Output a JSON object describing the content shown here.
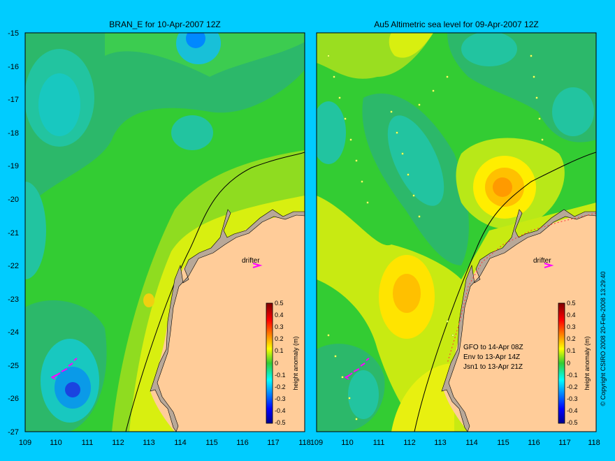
{
  "figure": {
    "copyright": "© Copyright CSIRO 2008   20-Feb-2008 13:29:40",
    "colors": {
      "background": "#00ccff",
      "land": "#ffcc99",
      "coast": "#b8a898",
      "drifter": "#ff00ff",
      "tracks": "#ffff66"
    },
    "lon_ticks": [
      "109",
      "110",
      "111",
      "112",
      "113",
      "114",
      "115",
      "116",
      "117",
      "118"
    ],
    "lat_ticks": [
      "-15",
      "-16",
      "-17",
      "-18",
      "-19",
      "-20",
      "-21",
      "-22",
      "-23",
      "-24",
      "-25",
      "-26",
      "-27"
    ],
    "colorbar": {
      "label": "height anomaly (m)",
      "ticks": [
        "0.5",
        "0.4",
        "0.3",
        "0.2",
        "0.1",
        "0",
        "-0.1",
        "-0.2",
        "-0.3",
        "-0.4",
        "-0.5"
      ],
      "range": [
        -0.5,
        0.5
      ],
      "colormap": "jet"
    }
  },
  "panels": [
    {
      "title": "BRAN_E for 10-Apr-2007 12Z",
      "drifter_label": "drifter",
      "satellite_notes": []
    },
    {
      "title": "Au5 Altimetric sea level  for 09-Apr-2007 12Z",
      "drifter_label": "drifter",
      "satellite_notes": [
        "GFO to 14-Apr 08Z",
        "Env to 13-Apr 14Z",
        "Jsn1 to 13-Apr 21Z"
      ]
    }
  ],
  "map": {
    "lon_range": [
      109,
      118
    ],
    "lat_range": [
      -27,
      -15
    ]
  }
}
